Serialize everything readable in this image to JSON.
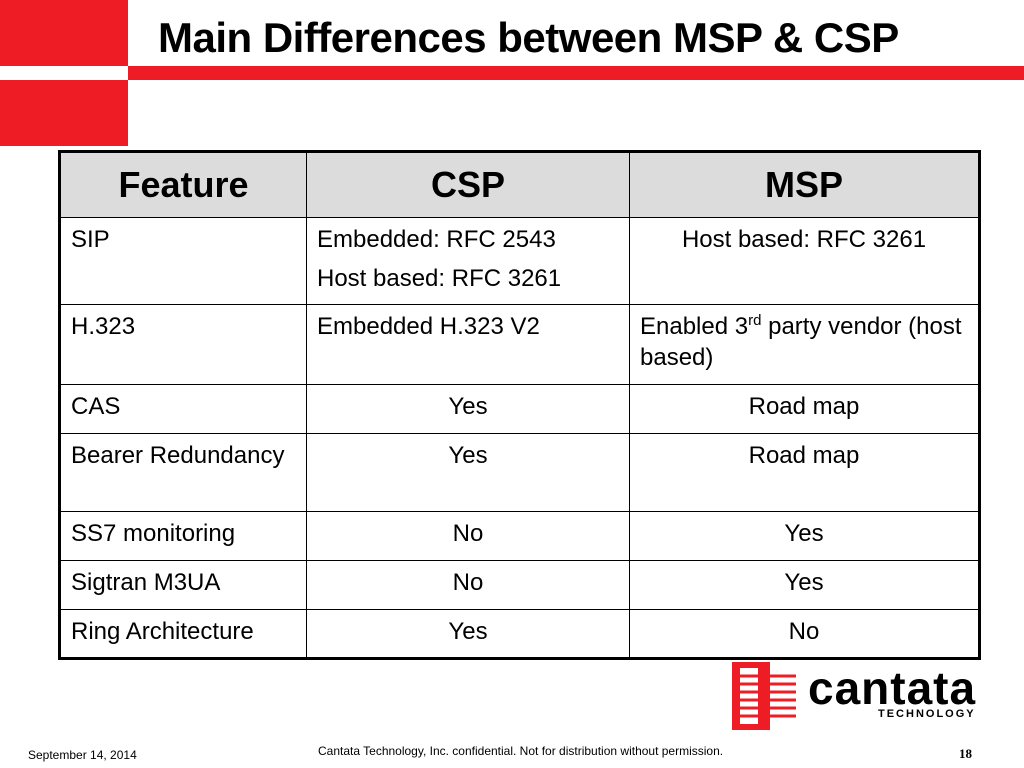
{
  "slide": {
    "title": "Main Differences between MSP & CSP"
  },
  "table": {
    "headers": [
      "Feature",
      "CSP",
      "MSP"
    ],
    "rows": [
      {
        "feature": "SIP",
        "csp_lines": [
          "Embedded: RFC 2543",
          "Host based: RFC 3261"
        ],
        "msp": "Host based: RFC 3261"
      },
      {
        "feature": "H.323",
        "csp": "Embedded H.323 V2",
        "msp_pre": "Enabled 3",
        "msp_sup": "rd",
        "msp_post": " party vendor (host based)"
      },
      {
        "feature": "CAS",
        "csp": "Yes",
        "msp": "Road map"
      },
      {
        "feature": "Bearer Redundancy",
        "csp": "Yes",
        "msp": "Road map"
      },
      {
        "feature": "SS7 monitoring",
        "csp": "No",
        "msp": "Yes"
      },
      {
        "feature": "Sigtran M3UA",
        "csp": "No",
        "msp": "Yes"
      },
      {
        "feature": "Ring Architecture",
        "csp": "Yes",
        "msp": "No"
      }
    ]
  },
  "logo": {
    "name": "cantata",
    "tagline": "TECHNOLOGY"
  },
  "footer": {
    "date": "September 14, 2014",
    "note": "Cantata Technology, Inc. confidential. Not for distribution without permission.",
    "page": "18"
  },
  "colors": {
    "accent": "#ee1c25",
    "header_bg": "#dcdcdc"
  }
}
